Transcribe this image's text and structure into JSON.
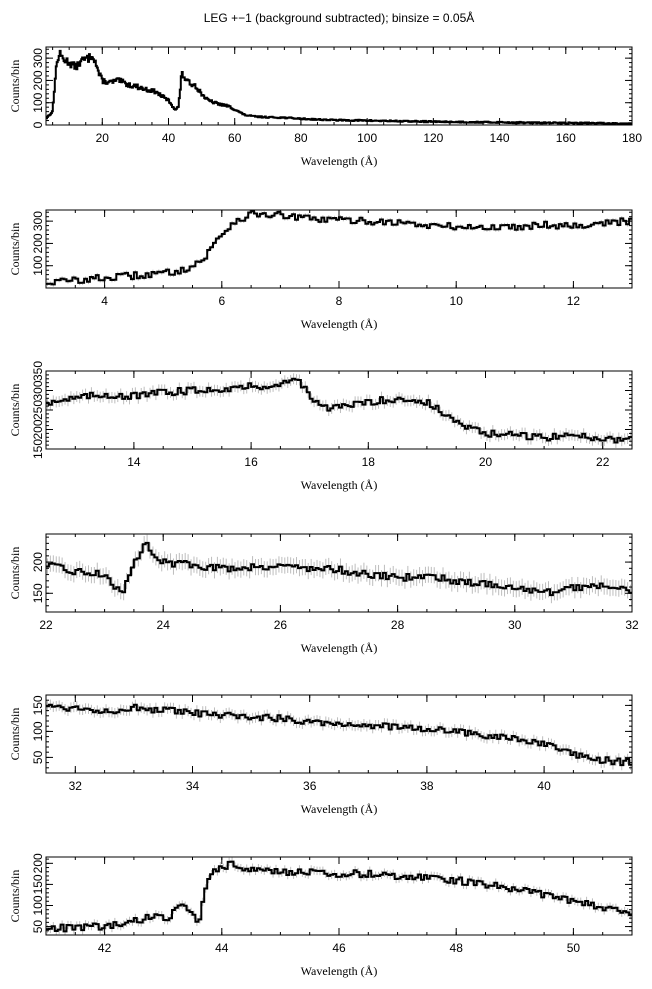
{
  "title": "LEG +−1 (background subtracted); binsize = 0.05Å",
  "chart_data": [
    {
      "type": "line",
      "step": true,
      "xlabel": "Wavelength (Å)",
      "ylabel": "Counts/bin",
      "xlim": [
        3,
        180
      ],
      "ylim": [
        0,
        350
      ],
      "xticks": [
        20,
        40,
        60,
        80,
        100,
        120,
        140,
        160,
        180
      ],
      "yticks": [
        0,
        100,
        200,
        300
      ],
      "x": [
        3,
        5,
        6,
        7,
        8,
        10,
        12,
        14,
        16,
        17,
        18,
        19,
        20,
        22,
        25,
        28,
        30,
        33,
        36,
        40,
        42,
        43,
        44,
        46,
        48,
        50,
        52,
        55,
        58,
        60,
        63,
        66,
        70,
        75,
        80,
        90,
        100,
        110,
        120,
        130,
        140,
        150,
        160,
        170,
        180
      ],
      "y": [
        30,
        60,
        250,
        320,
        300,
        280,
        260,
        290,
        300,
        320,
        280,
        230,
        200,
        190,
        200,
        180,
        175,
        160,
        150,
        110,
        70,
        80,
        230,
        190,
        180,
        140,
        110,
        95,
        85,
        70,
        45,
        38,
        35,
        33,
        28,
        22,
        20,
        17,
        15,
        13,
        12,
        10,
        9,
        8,
        6
      ]
    },
    {
      "type": "line",
      "step": true,
      "xlabel": "Wavelength (Å)",
      "ylabel": "Counts/bin",
      "xlim": [
        3,
        13
      ],
      "ylim": [
        0,
        350
      ],
      "xticks": [
        4,
        6,
        8,
        10,
        12
      ],
      "yticks": [
        100,
        200,
        300
      ],
      "x": [
        3,
        3.5,
        4,
        4.5,
        5,
        5.3,
        5.5,
        5.7,
        5.8,
        5.9,
        6,
        6.1,
        6.2,
        6.4,
        6.6,
        7,
        7.5,
        8,
        8.5,
        9,
        9.5,
        10,
        10.5,
        11,
        11.5,
        12,
        12.5,
        13
      ],
      "y": [
        25,
        35,
        45,
        55,
        65,
        80,
        100,
        130,
        170,
        210,
        240,
        270,
        295,
        320,
        335,
        325,
        310,
        305,
        300,
        295,
        280,
        275,
        270,
        275,
        285,
        280,
        290,
        300
      ],
      "error": 10
    },
    {
      "type": "line",
      "step": true,
      "xlabel": "Wavelength (Å)",
      "ylabel": "Counts/bin",
      "xlim": [
        12.5,
        22.5
      ],
      "ylim": [
        150,
        350
      ],
      "xticks": [
        14,
        16,
        18,
        20,
        22
      ],
      "yticks": [
        150,
        200,
        250,
        300,
        350
      ],
      "x": [
        12.5,
        13,
        13.5,
        14,
        14.5,
        15,
        15.5,
        16,
        16.5,
        16.8,
        17,
        17.3,
        17.6,
        18,
        18.5,
        19,
        19.3,
        19.6,
        20,
        20.5,
        21,
        21.5,
        22,
        22.5
      ],
      "y": [
        270,
        280,
        290,
        285,
        295,
        300,
        305,
        310,
        315,
        330,
        290,
        250,
        260,
        270,
        280,
        270,
        240,
        210,
        190,
        185,
        180,
        185,
        178,
        172
      ],
      "error": 14
    },
    {
      "type": "line",
      "step": true,
      "xlabel": "Wavelength (Å)",
      "ylabel": "Counts/bin",
      "xlim": [
        22,
        32
      ],
      "ylim": [
        120,
        245
      ],
      "xticks": [
        22,
        24,
        26,
        28,
        30,
        32
      ],
      "yticks": [
        150,
        200
      ],
      "x": [
        22,
        22.5,
        23,
        23.3,
        23.6,
        23.7,
        24,
        24.5,
        25,
        25.5,
        26,
        26.5,
        27,
        27.5,
        28,
        28.5,
        29,
        29.5,
        30,
        30.5,
        31,
        31.5,
        32
      ],
      "y": [
        195,
        185,
        180,
        150,
        215,
        230,
        200,
        195,
        190,
        192,
        195,
        190,
        188,
        180,
        175,
        178,
        170,
        165,
        160,
        150,
        158,
        165,
        155
      ],
      "error": 13
    },
    {
      "type": "line",
      "step": true,
      "xlabel": "Wavelength (Å)",
      "ylabel": "Counts/bin",
      "xlim": [
        31.5,
        41.5
      ],
      "ylim": [
        20,
        170
      ],
      "xticks": [
        32,
        34,
        36,
        38,
        40
      ],
      "yticks": [
        50,
        100,
        150
      ],
      "x": [
        31.5,
        32,
        32.5,
        33,
        33.5,
        34,
        34.5,
        35,
        35.5,
        36,
        36.5,
        37,
        37.5,
        38,
        38.5,
        39,
        39.5,
        40,
        40.5,
        41,
        41.5
      ],
      "y": [
        150,
        145,
        140,
        145,
        140,
        135,
        130,
        128,
        125,
        120,
        115,
        112,
        108,
        105,
        100,
        92,
        85,
        75,
        55,
        45,
        40
      ],
      "error": 10
    },
    {
      "type": "line",
      "step": true,
      "xlabel": "Wavelength (Å)",
      "ylabel": "Counts/bin",
      "xlim": [
        41,
        51
      ],
      "ylim": [
        30,
        215
      ],
      "xticks": [
        42,
        44,
        46,
        48,
        50
      ],
      "yticks": [
        50,
        100,
        150,
        200
      ],
      "x": [
        41,
        41.5,
        42,
        42.3,
        42.6,
        42.9,
        43.1,
        43.3,
        43.4,
        43.6,
        43.8,
        44,
        44.2,
        44.5,
        45,
        45.5,
        46,
        46.5,
        47,
        47.5,
        48,
        48.5,
        49,
        49.5,
        50,
        50.5,
        51
      ],
      "y": [
        45,
        48,
        50,
        55,
        65,
        80,
        70,
        100,
        90,
        60,
        180,
        190,
        200,
        185,
        180,
        178,
        176,
        175,
        170,
        168,
        160,
        150,
        140,
        125,
        110,
        95,
        80
      ],
      "error": 10
    }
  ]
}
